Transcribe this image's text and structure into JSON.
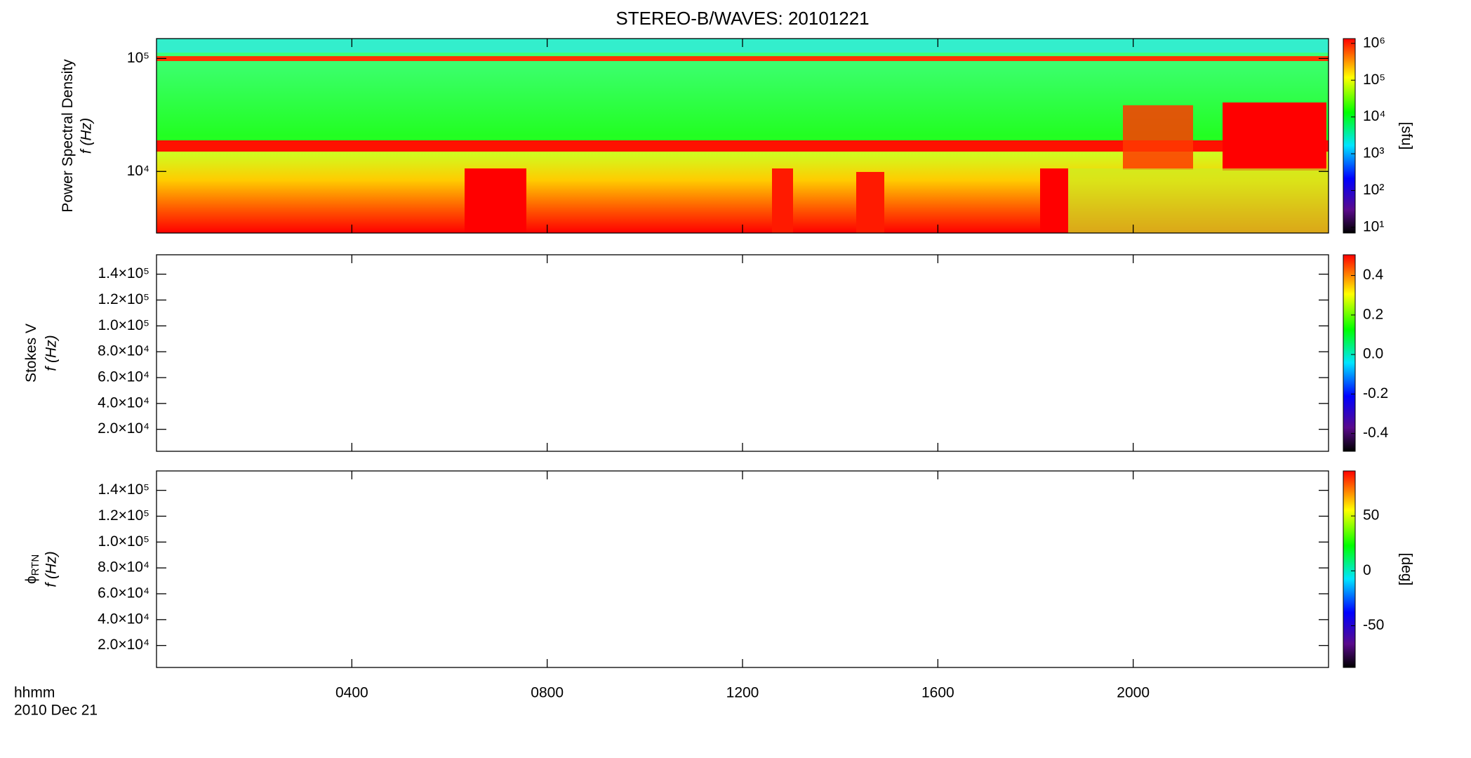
{
  "chart_data": {
    "type": "spectrogram",
    "title": "STEREO-B/WAVES: 20101221",
    "x_label": "hhmm",
    "x_sublabel": "2010 Dec 21",
    "xlim": [
      0,
      24
    ],
    "xticks": [
      {
        "value": 4,
        "label": "0400"
      },
      {
        "value": 8,
        "label": "0800"
      },
      {
        "value": 12,
        "label": "1200"
      },
      {
        "value": 16,
        "label": "1600"
      },
      {
        "value": 20,
        "label": "2000"
      }
    ],
    "panels": [
      {
        "ylabel": "Power Spectral Density",
        "ylabel2": "f (Hz)",
        "ylog": true,
        "ylim": [
          2850,
          150000
        ],
        "yticks": [
          {
            "value": 10000,
            "label": "10⁴"
          },
          {
            "value": 100000,
            "label": "10⁵"
          }
        ],
        "clog": true,
        "clim": [
          7,
          1350000
        ],
        "cticks": [
          {
            "value": 10,
            "label": "10¹"
          },
          {
            "value": 100,
            "label": "10²"
          },
          {
            "value": 1000,
            "label": "10³"
          },
          {
            "value": 10000,
            "label": "10⁴"
          },
          {
            "value": 100000,
            "label": "10⁵"
          },
          {
            "value": 1000000,
            "label": "10⁶"
          }
        ],
        "clabel": "[sfu]"
      },
      {
        "ylabel": "Stokes V",
        "ylabel2": "f (Hz)",
        "ylog": false,
        "ylim": [
          3000,
          155000
        ],
        "yticks": [
          {
            "value": 20000,
            "label": "2.0×10⁴"
          },
          {
            "value": 40000,
            "label": "4.0×10⁴"
          },
          {
            "value": 60000,
            "label": "6.0×10⁴"
          },
          {
            "value": 80000,
            "label": "8.0×10⁴"
          },
          {
            "value": 100000,
            "label": "1.0×10⁵"
          },
          {
            "value": 120000,
            "label": "1.2×10⁵"
          },
          {
            "value": 140000,
            "label": "1.4×10⁵"
          }
        ],
        "clog": false,
        "clim": [
          -0.49,
          0.505
        ],
        "cticks": [
          -0.4,
          -0.2,
          {
            "value": 0,
            "label": "0.0"
          },
          0.2,
          0.4
        ]
      },
      {
        "ylabel": "ϕ",
        "ylabel_sub": "RTN",
        "ylabel2": "f (Hz)",
        "ylog": false,
        "ylim": [
          3000,
          155000
        ],
        "yticks": [
          {
            "value": 20000,
            "label": "2.0×10⁴"
          },
          {
            "value": 40000,
            "label": "4.0×10⁴"
          },
          {
            "value": 60000,
            "label": "6.0×10⁴"
          },
          {
            "value": 80000,
            "label": "8.0×10⁴"
          },
          {
            "value": 100000,
            "label": "1.0×10⁵"
          },
          {
            "value": 120000,
            "label": "1.2×10⁵"
          },
          {
            "value": 140000,
            "label": "1.4×10⁵"
          }
        ],
        "clog": false,
        "clim": [
          -88,
          91
        ],
        "cticks": [
          -50,
          0,
          50
        ],
        "clabel": "[deg]"
      }
    ]
  }
}
